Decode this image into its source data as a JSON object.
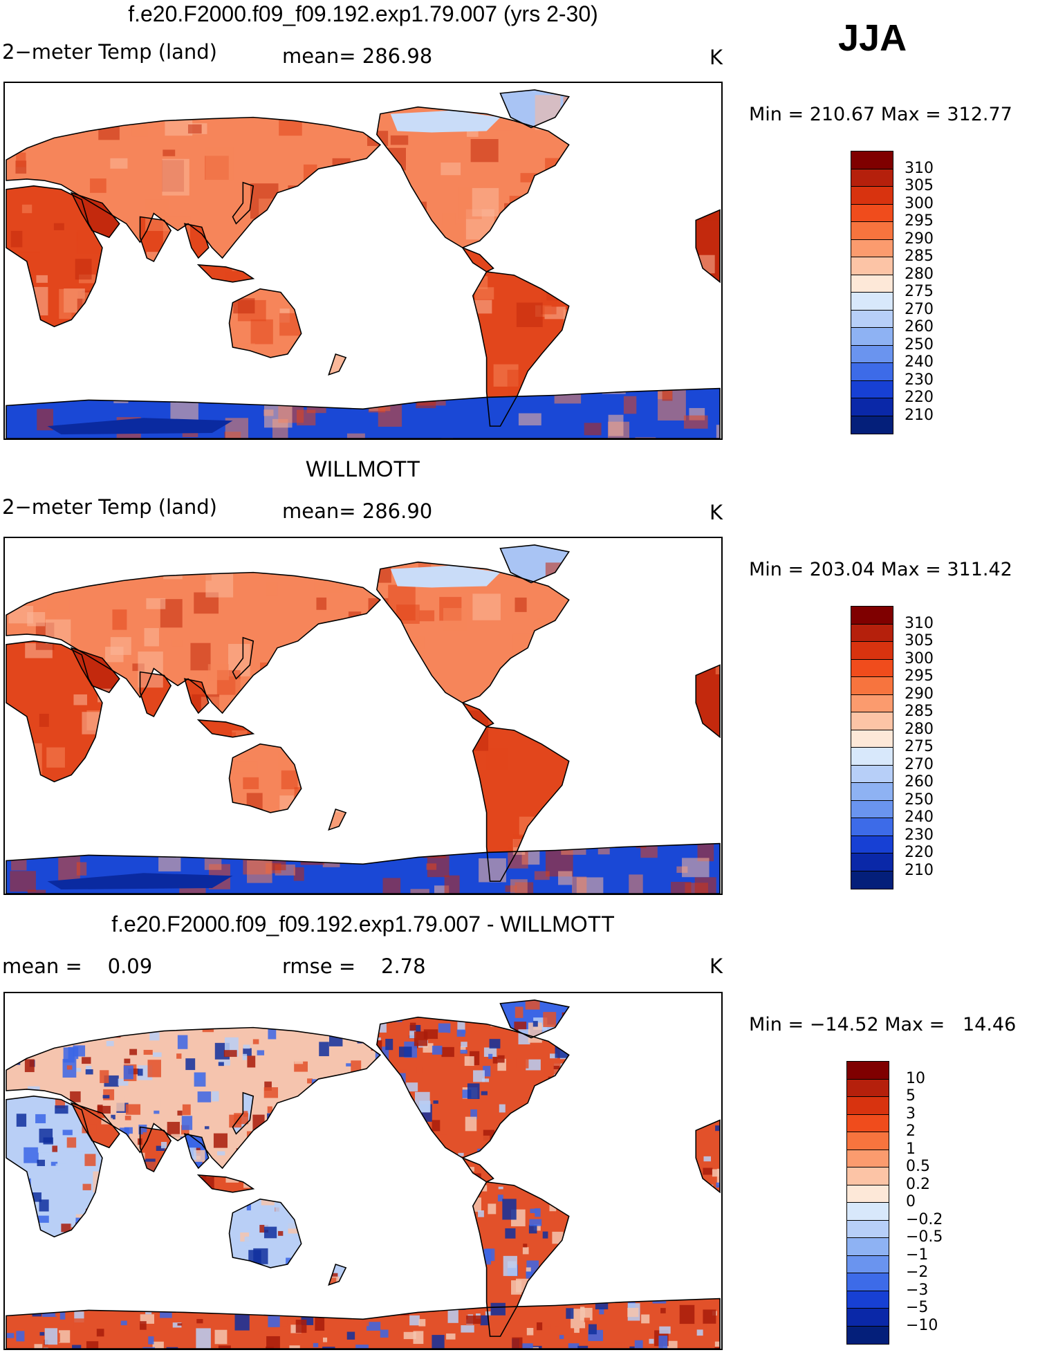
{
  "season": "JJA",
  "units": "K",
  "panels": [
    {
      "title": "f.e20.F2000.f09_f09.192.exp1.79.007 (yrs 2-30)",
      "left_label": "2−meter Temp (land)",
      "mid_label": "mean= 286.98",
      "units": "K",
      "minmax": "Min = 210.67 Max = 312.77",
      "scale": "abs"
    },
    {
      "title": "WILLMOTT",
      "left_label": "2−meter Temp (land)",
      "mid_label": "mean= 286.90",
      "units": "K",
      "minmax": "Min = 203.04 Max = 311.42",
      "scale": "abs"
    },
    {
      "title": "f.e20.F2000.f09_f09.192.exp1.79.007 - WILLMOTT",
      "left_label": "mean =    0.09",
      "mid_label": "rmse =    2.78",
      "units": "K",
      "minmax": "Min = −14.52 Max =   14.46",
      "scale": "diff"
    }
  ],
  "colorbars": {
    "abs": {
      "labels": [
        "310",
        "305",
        "300",
        "295",
        "290",
        "285",
        "280",
        "275",
        "270",
        "260",
        "250",
        "240",
        "230",
        "220",
        "210"
      ],
      "colors": [
        "#7f0000",
        "#b5200c",
        "#d8330f",
        "#f04c1c",
        "#f7743e",
        "#fb9b6e",
        "#fcc4a6",
        "#fde8d8",
        "#d8e8fb",
        "#b7cff8",
        "#8eb2f3",
        "#6a94ef",
        "#3d6be8",
        "#1740d4",
        "#0a28a8",
        "#041f7a"
      ]
    },
    "diff": {
      "labels": [
        "10",
        "5",
        "3",
        "2",
        "1",
        "0.5",
        "0.2",
        "0",
        "−0.2",
        "−0.5",
        "−1",
        "−2",
        "−3",
        "−5",
        "−10"
      ],
      "colors": [
        "#7f0000",
        "#b5200c",
        "#d8330f",
        "#f04c1c",
        "#f7743e",
        "#fb9b6e",
        "#fcc4a6",
        "#fde8d8",
        "#d8e8fb",
        "#b7cff8",
        "#8eb2f3",
        "#6a94ef",
        "#3d6be8",
        "#1740d4",
        "#0a28a8",
        "#041f7a"
      ]
    }
  },
  "map_colors": {
    "abs": {
      "tropics": "#e2461c",
      "midlat": "#f6855a",
      "north": "#fbb89a",
      "arctic": "#c9dcf8",
      "greenland": "#a9c4f4",
      "antarctic": "#1a48d6",
      "antarctic_deep": "#0a2aa0",
      "hot": "#c3290d"
    },
    "diff": {
      "warm": "#e2512a",
      "cool": "#3b66e6",
      "light": "#b9cff6",
      "neutral": "#f5c4ae",
      "deep_warm": "#a81c0a",
      "deep_cool": "#10309e"
    }
  }
}
